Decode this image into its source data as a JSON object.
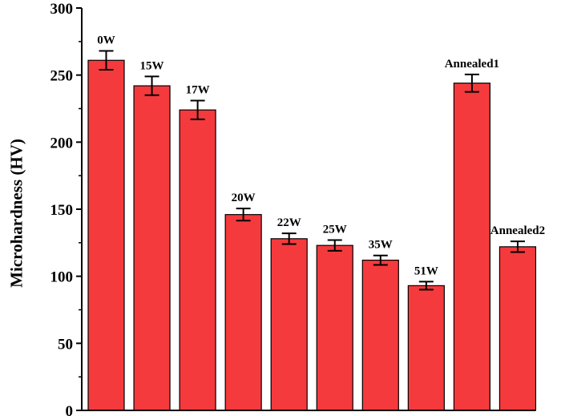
{
  "chart_data": {
    "type": "bar",
    "title": "",
    "xlabel": "",
    "ylabel": "Microhardness (HV)",
    "ylim": [
      0,
      300
    ],
    "yticks": [
      0,
      50,
      100,
      150,
      200,
      250,
      300
    ],
    "grid": false,
    "legend": "none",
    "bar_color": "#f53a3d",
    "categories": [
      "0W",
      "15W",
      "17W",
      "20W",
      "22W",
      "25W",
      "35W",
      "51W",
      "Annealed1",
      "Annealed2"
    ],
    "values": [
      261,
      242,
      224,
      146,
      128,
      123,
      112,
      93,
      244,
      122
    ],
    "errors": [
      7,
      7,
      7,
      4.5,
      4,
      4,
      3.5,
      3,
      6.5,
      4
    ]
  }
}
